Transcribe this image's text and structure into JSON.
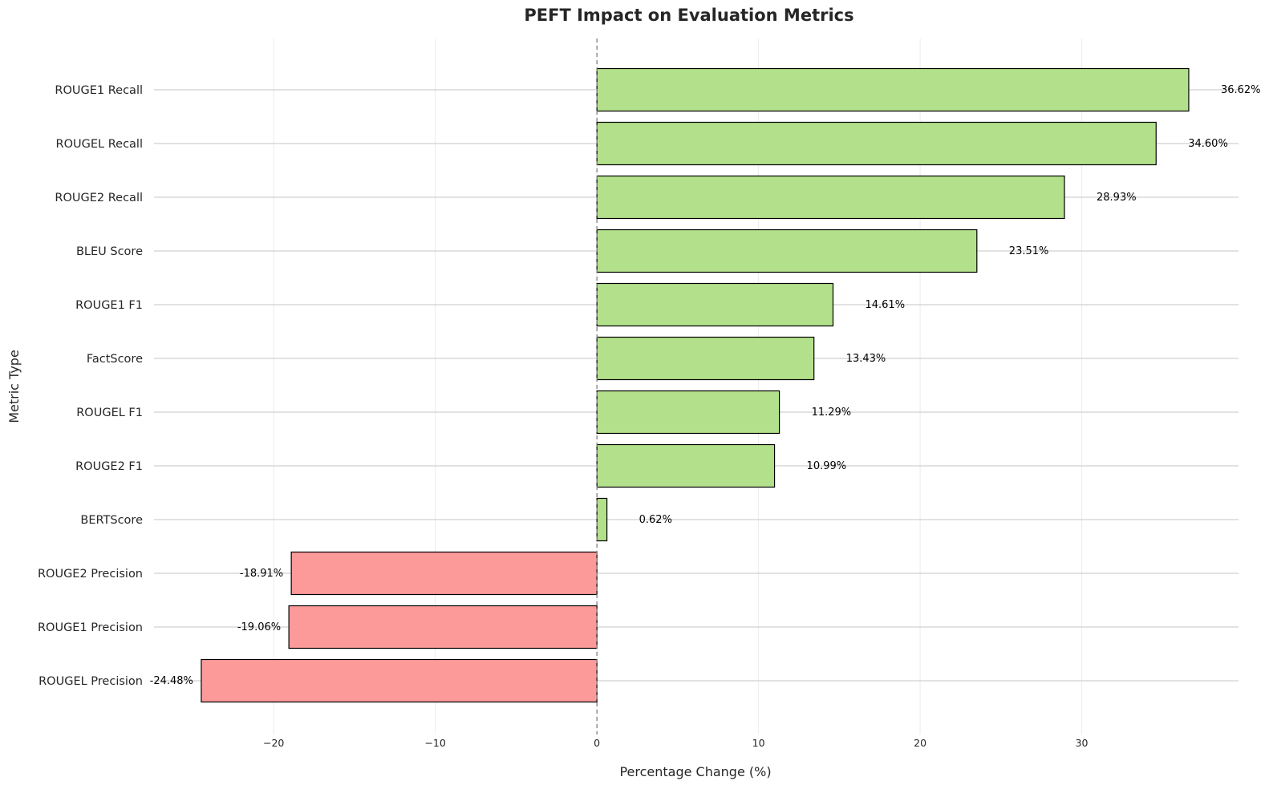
{
  "chart_data": {
    "type": "bar",
    "orientation": "horizontal",
    "title": "PEFT Impact on Evaluation Metrics",
    "xlabel": "Percentage Change (%)",
    "ylabel": "Metric Type",
    "categories": [
      "ROUGE1 Recall",
      "ROUGEL Recall",
      "ROUGE2 Recall",
      "BLEU Score",
      "ROUGE1 F1",
      "FactScore",
      "ROUGEL F1",
      "ROUGE2 F1",
      "BERTScore",
      "ROUGE2 Precision",
      "ROUGE1 Precision",
      "ROUGEL Precision"
    ],
    "values": [
      36.62,
      34.6,
      28.93,
      23.51,
      14.61,
      13.43,
      11.29,
      10.99,
      0.62,
      -18.91,
      -19.06,
      -24.48
    ],
    "value_labels": [
      "36.62%",
      "34.60%",
      "28.93%",
      "23.51%",
      "14.61%",
      "13.43%",
      "11.29%",
      "10.99%",
      "0.62%",
      "-18.91%",
      "-19.06%",
      "-24.48%"
    ],
    "xlim": [
      -28,
      39.7
    ],
    "xticks": [
      -20,
      -10,
      0,
      10,
      20,
      30
    ],
    "xtick_labels": [
      "−20",
      "−10",
      "0",
      "10",
      "20",
      "30"
    ],
    "colors": {
      "positive": "#b3e08a",
      "negative": "#fc9a9a",
      "edge": "#000000",
      "zero_line": "#808080",
      "grid": "#d0d0d0"
    },
    "grid": true,
    "zero_line": "dashed"
  }
}
